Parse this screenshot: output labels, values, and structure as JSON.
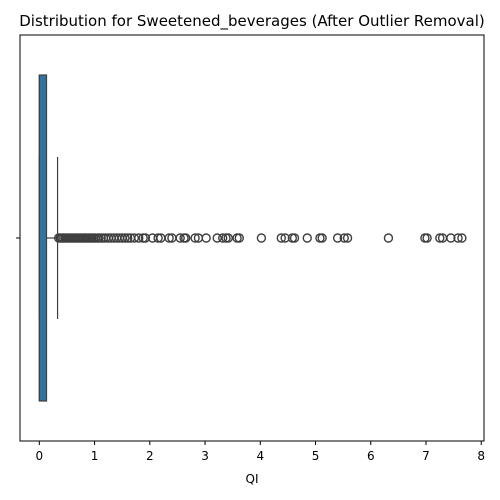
{
  "chart_data": {
    "type": "boxplot",
    "orientation": "horizontal",
    "title": "Distribution for Sweetened_beverages (After Outlier Removal)",
    "xlabel": "QI",
    "ylabel": "",
    "xlim": [
      -0.35,
      8.05
    ],
    "xticks": [
      0,
      1,
      2,
      3,
      4,
      5,
      6,
      7,
      8
    ],
    "xtick_labels": [
      "0",
      "1",
      "2",
      "3",
      "4",
      "5",
      "6",
      "7",
      "8"
    ],
    "grid": false,
    "legend": "none",
    "box": {
      "q1": 0.0,
      "median": 0.0,
      "q3": 0.13,
      "whisker_low": 0.0,
      "whisker_high": 0.33
    },
    "outliers": [
      0.35,
      0.38,
      0.41,
      0.44,
      0.47,
      0.5,
      0.53,
      0.56,
      0.59,
      0.62,
      0.65,
      0.68,
      0.71,
      0.74,
      0.77,
      0.8,
      0.83,
      0.86,
      0.89,
      0.92,
      0.95,
      0.98,
      1.01,
      1.05,
      1.08,
      1.12,
      1.16,
      1.2,
      1.25,
      1.3,
      1.35,
      1.4,
      1.45,
      1.5,
      1.55,
      1.6,
      1.65,
      1.72,
      1.8,
      1.88,
      1.92,
      2.05,
      2.15,
      2.2,
      2.35,
      2.4,
      2.55,
      2.62,
      2.65,
      2.82,
      2.88,
      3.02,
      3.22,
      3.32,
      3.38,
      3.42,
      3.58,
      3.62,
      4.02,
      4.38,
      4.45,
      4.58,
      4.62,
      4.85,
      5.08,
      5.12,
      5.4,
      5.52,
      5.58,
      6.32,
      6.98,
      7.02,
      7.25,
      7.3,
      7.45,
      7.58,
      7.65
    ],
    "colors": {
      "box_fill": "#3274a1",
      "lines": "#3f3f3f",
      "axes": "#000000"
    }
  }
}
